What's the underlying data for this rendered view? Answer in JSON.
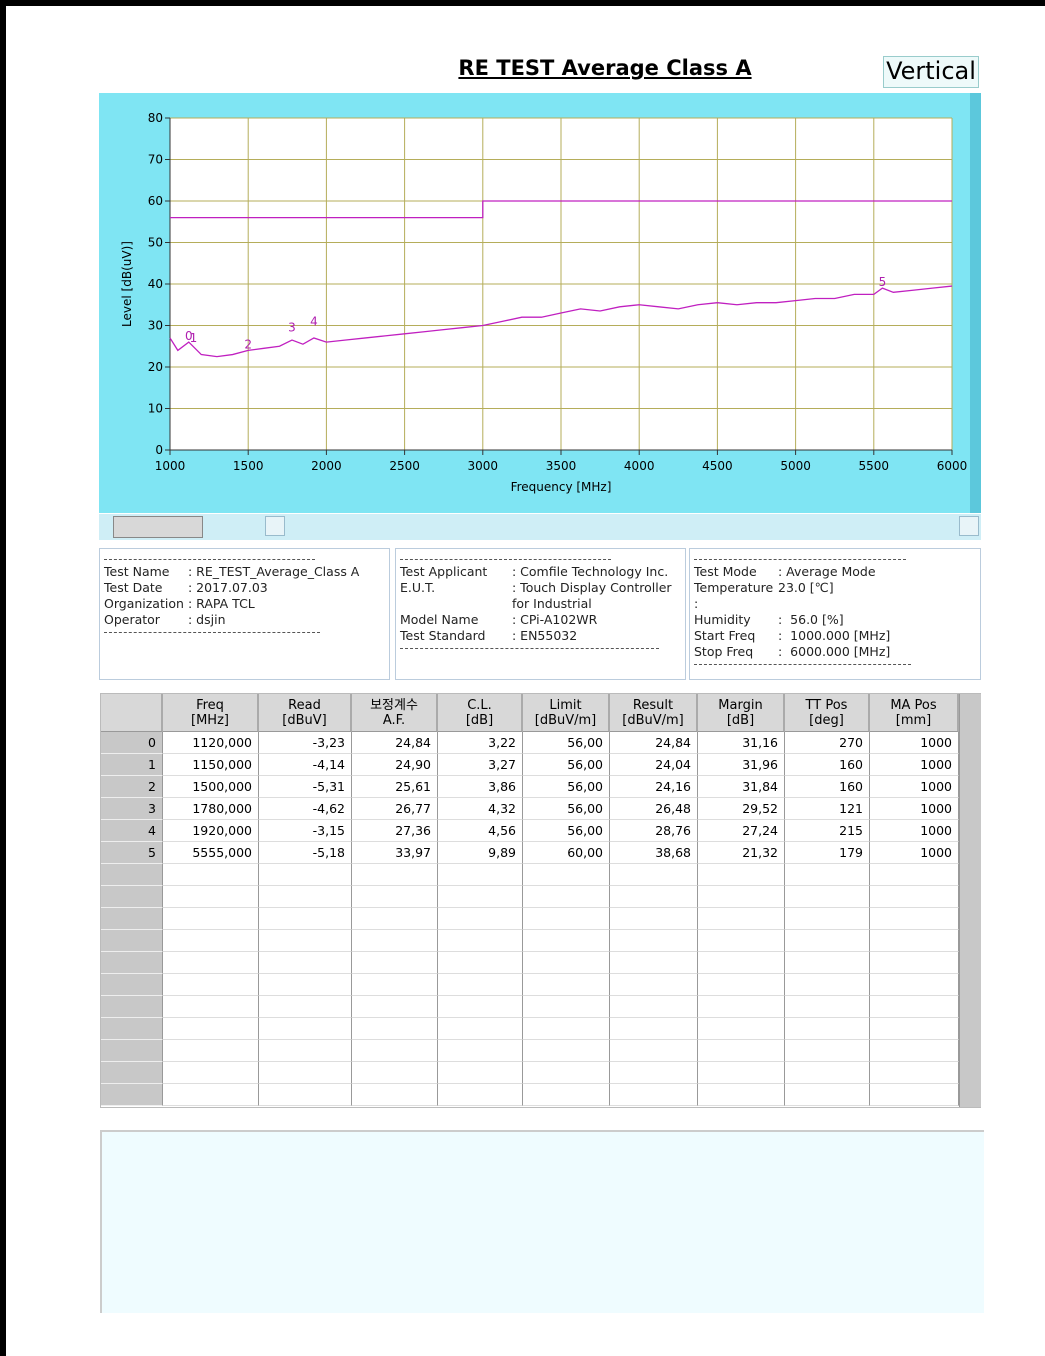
{
  "chart_data": {
    "type": "line",
    "title": "RE TEST Average Class A",
    "polarization": "Vertical",
    "x_label": "Frequency [MHz]",
    "y_label": "Level [dB(uV)]",
    "xlim": [
      1000,
      6000
    ],
    "xticks": [
      1000,
      1500,
      2000,
      2500,
      3000,
      3500,
      4000,
      4500,
      5000,
      5500,
      6000
    ],
    "ylim": [
      0,
      80
    ],
    "yticks": [
      0,
      10,
      20,
      30,
      40,
      50,
      60,
      70,
      80
    ],
    "grid": true,
    "series": [
      {
        "color": "#c020c0",
        "x": [
          1000,
          3000,
          3000,
          6000
        ],
        "values": [
          56,
          56,
          60,
          60
        ]
      },
      {
        "color": "#c020c0",
        "x": [
          1000,
          1050,
          1120,
          1200,
          1300,
          1400,
          1500,
          1600,
          1700,
          1780,
          1850,
          1920,
          2000,
          2125,
          2250,
          2375,
          2500,
          2625,
          2750,
          2875,
          3000,
          3125,
          3250,
          3375,
          3500,
          3625,
          3750,
          3875,
          4000,
          4125,
          4250,
          4375,
          4500,
          4625,
          4750,
          4875,
          5000,
          5125,
          5250,
          5375,
          5500,
          5555,
          5625,
          5750,
          5875,
          6000
        ],
        "values": [
          27,
          24,
          26,
          23,
          22.5,
          23,
          24,
          24.5,
          25,
          26.5,
          25.5,
          27,
          26,
          26.5,
          27,
          27.5,
          28,
          28.5,
          29,
          29.5,
          30,
          31,
          32,
          32,
          33,
          34,
          33.5,
          34.5,
          35,
          34.5,
          34,
          35,
          35.5,
          35,
          35.5,
          35.5,
          36,
          36.5,
          36.5,
          37.5,
          37.5,
          39,
          38,
          38.5,
          39,
          39.5
        ]
      }
    ],
    "annotations": [
      {
        "text": "0",
        "x": 1120,
        "y": 26.5
      },
      {
        "text": "1",
        "x": 1150,
        "y": 26
      },
      {
        "text": "2",
        "x": 1500,
        "y": 24.5
      },
      {
        "text": "3",
        "x": 1780,
        "y": 28.5
      },
      {
        "text": "4",
        "x": 1920,
        "y": 30
      },
      {
        "text": "5",
        "x": 5555,
        "y": 39.5
      }
    ]
  },
  "info": [
    [
      [
        "Test Name",
        ": RE_TEST_Average_Class A"
      ],
      [
        "Test Date",
        ": 2017.07.03"
      ],
      [
        "Organization",
        ": RAPA TCL"
      ],
      [
        "Operator",
        ": dsjin"
      ]
    ],
    [
      [
        "Test Applicant",
        ": Comfile Technology Inc."
      ],
      [
        "E.U.T.",
        ": Touch Display Controller for Industrial"
      ],
      [
        "Model Name",
        ": CPi-A102WR"
      ],
      [
        "Test Standard",
        ": EN55032"
      ]
    ],
    [
      [
        "Test Mode",
        ": Average Mode"
      ],
      [
        "Temperature :",
        "23.0 [℃]"
      ],
      [
        "Humidity",
        ":  56.0 [%]"
      ],
      [
        "Start Freq",
        ":  1000.000 [MHz]"
      ],
      [
        "Stop Freq",
        ":  6000.000 [MHz]"
      ]
    ]
  ],
  "table": {
    "columns": [
      [
        "Freq",
        "[MHz]"
      ],
      [
        "Read",
        "[dBuV]"
      ],
      [
        "보정계수",
        "A.F."
      ],
      [
        "C.L.",
        "[dB]"
      ],
      [
        "Limit",
        "[dBuV/m]"
      ],
      [
        "Result",
        "[dBuV/m]"
      ],
      [
        "Margin",
        "[dB]"
      ],
      [
        "TT Pos",
        "[deg]"
      ],
      [
        "MA Pos",
        "[mm]"
      ]
    ],
    "rows": [
      [
        "0",
        "1120,000",
        "-3,23",
        "24,84",
        "3,22",
        "56,00",
        "24,84",
        "31,16",
        "270",
        "1000"
      ],
      [
        "1",
        "1150,000",
        "-4,14",
        "24,90",
        "3,27",
        "56,00",
        "24,04",
        "31,96",
        "160",
        "1000"
      ],
      [
        "2",
        "1500,000",
        "-5,31",
        "25,61",
        "3,86",
        "56,00",
        "24,16",
        "31,84",
        "160",
        "1000"
      ],
      [
        "3",
        "1780,000",
        "-4,62",
        "26,77",
        "4,32",
        "56,00",
        "26,48",
        "29,52",
        "121",
        "1000"
      ],
      [
        "4",
        "1920,000",
        "-3,15",
        "27,36",
        "4,56",
        "56,00",
        "28,76",
        "27,24",
        "215",
        "1000"
      ],
      [
        "5",
        "5555,000",
        "-5,18",
        "33,97",
        "9,89",
        "60,00",
        "38,68",
        "21,32",
        "179",
        "1000"
      ]
    ]
  }
}
